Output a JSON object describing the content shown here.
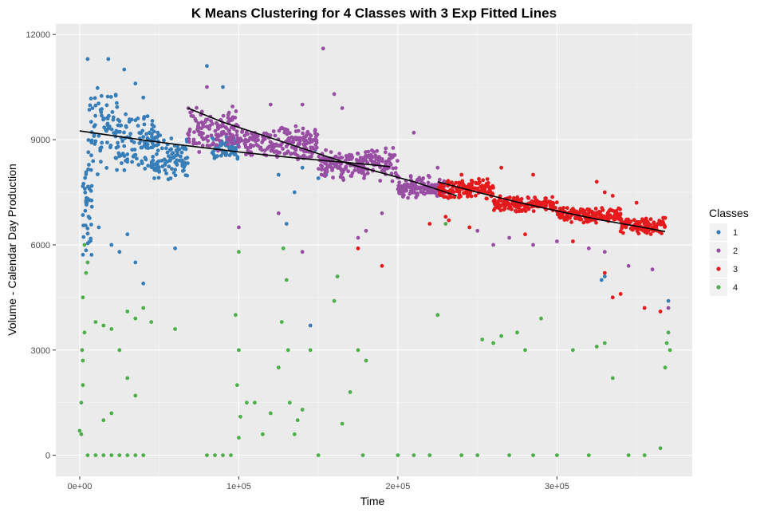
{
  "chart_data": {
    "type": "scatter",
    "title": "K Means Clustering for 4 Classes with 3 Exp Fitted Lines",
    "xlabel": "Time",
    "ylabel": "Volume - Calendar Day Production",
    "xlim": [
      -15000,
      385000
    ],
    "ylim": [
      -600,
      12300
    ],
    "x_ticks": [
      0,
      100000,
      200000,
      300000
    ],
    "x_tick_labels": [
      "0e+00",
      "1e+05",
      "2e+05",
      "3e+05"
    ],
    "y_ticks": [
      0,
      3000,
      6000,
      9000,
      12000
    ],
    "y_tick_labels": [
      "0",
      "3000",
      "6000",
      "9000",
      "12000"
    ],
    "legend": {
      "title": "Classes",
      "position": "right",
      "entries": [
        {
          "label": "1",
          "color": "#377EB8"
        },
        {
          "label": "2",
          "color": "#984EA3"
        },
        {
          "label": "3",
          "color": "#E41A1C"
        },
        {
          "label": "4",
          "color": "#4DAF4A"
        }
      ]
    },
    "series": [
      {
        "name": "1",
        "color": "#377EB8",
        "description": "dense band",
        "bands": [
          {
            "x": [
              2000,
              8000
            ],
            "y": [
              5000,
              9000
            ]
          },
          {
            "x": [
              5000,
              25000
            ],
            "y": [
              8000,
              10500
            ]
          },
          {
            "x": [
              25000,
              50000
            ],
            "y": [
              8000,
              9800
            ]
          },
          {
            "x": [
              45000,
              68000
            ],
            "y": [
              7800,
              9200
            ]
          },
          {
            "x": [
              83000,
              100000
            ],
            "y": [
              8400,
              9100
            ]
          }
        ],
        "points": [
          [
            5000,
            11300
          ],
          [
            18000,
            11300
          ],
          [
            28000,
            11000
          ],
          [
            35000,
            10600
          ],
          [
            40000,
            10200
          ],
          [
            80000,
            11100
          ],
          [
            90000,
            10500
          ],
          [
            12000,
            6500
          ],
          [
            20000,
            6000
          ],
          [
            25000,
            5800
          ],
          [
            30000,
            6300
          ],
          [
            35000,
            5500
          ],
          [
            40000,
            4900
          ],
          [
            60000,
            5900
          ],
          [
            125000,
            8000
          ],
          [
            130000,
            6600
          ],
          [
            135000,
            7500
          ],
          [
            140000,
            8200
          ],
          [
            148000,
            8700
          ],
          [
            150000,
            7900
          ],
          [
            155000,
            8000
          ],
          [
            160000,
            8300
          ],
          [
            175000,
            8600
          ],
          [
            145000,
            3700
          ],
          [
            370000,
            4400
          ],
          [
            330000,
            5100
          ],
          [
            328000,
            5000
          ]
        ]
      },
      {
        "name": "2",
        "color": "#984EA3",
        "description": "dense band",
        "bands": [
          {
            "x": [
              68000,
              100000
            ],
            "y": [
              8600,
              10000
            ]
          },
          {
            "x": [
              100000,
              150000
            ],
            "y": [
              8400,
              9400
            ]
          },
          {
            "x": [
              150000,
              200000
            ],
            "y": [
              7800,
              8800
            ]
          },
          {
            "x": [
              200000,
              230000
            ],
            "y": [
              7300,
              8000
            ]
          }
        ],
        "points": [
          [
            80000,
            10500
          ],
          [
            120000,
            10000
          ],
          [
            140000,
            10000
          ],
          [
            153000,
            11600
          ],
          [
            160000,
            10300
          ],
          [
            165000,
            9900
          ],
          [
            210000,
            9200
          ],
          [
            225000,
            8200
          ],
          [
            215000,
            7800
          ],
          [
            100000,
            6500
          ],
          [
            125000,
            6900
          ],
          [
            140000,
            5800
          ],
          [
            175000,
            6200
          ],
          [
            180000,
            6400
          ],
          [
            190000,
            6900
          ],
          [
            250000,
            6400
          ],
          [
            260000,
            6000
          ],
          [
            270000,
            6200
          ],
          [
            285000,
            6000
          ],
          [
            300000,
            6100
          ],
          [
            320000,
            5900
          ],
          [
            330000,
            5800
          ],
          [
            345000,
            5400
          ],
          [
            360000,
            5300
          ],
          [
            370000,
            4200
          ]
        ]
      },
      {
        "name": "3",
        "color": "#E41A1C",
        "description": "dense band",
        "bands": [
          {
            "x": [
              225000,
              260000
            ],
            "y": [
              7300,
              7900
            ]
          },
          {
            "x": [
              260000,
              300000
            ],
            "y": [
              6900,
              7400
            ]
          },
          {
            "x": [
              300000,
              340000
            ],
            "y": [
              6600,
              7100
            ]
          },
          {
            "x": [
              340000,
              368000
            ],
            "y": [
              6300,
              6800
            ]
          }
        ],
        "points": [
          [
            240000,
            8000
          ],
          [
            265000,
            8200
          ],
          [
            285000,
            8000
          ],
          [
            325000,
            7800
          ],
          [
            330000,
            7500
          ],
          [
            335000,
            7400
          ],
          [
            350000,
            7200
          ],
          [
            230000,
            6800
          ],
          [
            245000,
            6500
          ],
          [
            280000,
            6300
          ],
          [
            310000,
            6100
          ],
          [
            330000,
            5200
          ],
          [
            335000,
            4500
          ],
          [
            340000,
            4600
          ],
          [
            355000,
            4200
          ],
          [
            365000,
            4100
          ],
          [
            175000,
            5900
          ],
          [
            190000,
            5400
          ],
          [
            220000,
            6600
          ],
          [
            232000,
            6700
          ]
        ]
      },
      {
        "name": "4",
        "color": "#4DAF4A",
        "description": "scattered",
        "points": [
          [
            0,
            700
          ],
          [
            1000,
            1500
          ],
          [
            2000,
            2000
          ],
          [
            1500,
            3000
          ],
          [
            3000,
            3500
          ],
          [
            2000,
            4500
          ],
          [
            4000,
            5200
          ],
          [
            3000,
            6000
          ],
          [
            5000,
            5500
          ],
          [
            2000,
            2700
          ],
          [
            1000,
            600
          ],
          [
            5000,
            0
          ],
          [
            10000,
            0
          ],
          [
            15000,
            0
          ],
          [
            20000,
            0
          ],
          [
            25000,
            0
          ],
          [
            30000,
            0
          ],
          [
            35000,
            0
          ],
          [
            40000,
            0
          ],
          [
            10000,
            3800
          ],
          [
            15000,
            3700
          ],
          [
            20000,
            3600
          ],
          [
            25000,
            3000
          ],
          [
            30000,
            4100
          ],
          [
            35000,
            3900
          ],
          [
            40000,
            4200
          ],
          [
            45000,
            3800
          ],
          [
            30000,
            2200
          ],
          [
            35000,
            1700
          ],
          [
            15000,
            1000
          ],
          [
            20000,
            1200
          ],
          [
            60000,
            3600
          ],
          [
            80000,
            0
          ],
          [
            85000,
            0
          ],
          [
            90000,
            0
          ],
          [
            95000,
            0
          ],
          [
            98000,
            4000
          ],
          [
            100000,
            5800
          ],
          [
            100000,
            3000
          ],
          [
            99000,
            2000
          ],
          [
            101000,
            1100
          ],
          [
            100000,
            500
          ],
          [
            105000,
            1500
          ],
          [
            110000,
            1500
          ],
          [
            115000,
            600
          ],
          [
            120000,
            1200
          ],
          [
            125000,
            2500
          ],
          [
            128000,
            5900
          ],
          [
            127000,
            3800
          ],
          [
            130000,
            5000
          ],
          [
            131000,
            3000
          ],
          [
            132000,
            1500
          ],
          [
            135000,
            600
          ],
          [
            137000,
            1000
          ],
          [
            140000,
            1300
          ],
          [
            145000,
            3000
          ],
          [
            150000,
            0
          ],
          [
            160000,
            4400
          ],
          [
            162000,
            5100
          ],
          [
            165000,
            900
          ],
          [
            170000,
            1800
          ],
          [
            175000,
            3000
          ],
          [
            180000,
            2700
          ],
          [
            178000,
            0
          ],
          [
            200000,
            0
          ],
          [
            210000,
            0
          ],
          [
            220000,
            0
          ],
          [
            225000,
            4000
          ],
          [
            230000,
            6600
          ],
          [
            240000,
            0
          ],
          [
            250000,
            0
          ],
          [
            253000,
            3300
          ],
          [
            260000,
            3200
          ],
          [
            265000,
            3400
          ],
          [
            270000,
            0
          ],
          [
            275000,
            3500
          ],
          [
            280000,
            3000
          ],
          [
            285000,
            0
          ],
          [
            290000,
            3900
          ],
          [
            300000,
            0
          ],
          [
            310000,
            3000
          ],
          [
            320000,
            0
          ],
          [
            325000,
            3100
          ],
          [
            330000,
            3200
          ],
          [
            335000,
            2200
          ],
          [
            345000,
            0
          ],
          [
            355000,
            0
          ],
          [
            365000,
            200
          ],
          [
            368000,
            2500
          ],
          [
            369000,
            3200
          ],
          [
            370000,
            3500
          ],
          [
            371000,
            3000
          ]
        ]
      }
    ],
    "fitted_lines": [
      {
        "name": "fit-1",
        "color": "#000000",
        "x": [
          0,
          20000,
          40000,
          60000,
          80000,
          100000,
          120000,
          140000,
          160000,
          180000,
          195000
        ],
        "y": [
          9250,
          9120,
          8990,
          8870,
          8760,
          8650,
          8550,
          8460,
          8380,
          8300,
          8230
        ]
      },
      {
        "name": "fit-2",
        "color": "#000000",
        "x": [
          68000,
          90000,
          110000,
          130000,
          150000,
          170000,
          190000,
          210000,
          237000
        ],
        "y": [
          9900,
          9500,
          9200,
          8900,
          8600,
          8300,
          8050,
          7800,
          7400
        ]
      },
      {
        "name": "fit-3",
        "color": "#000000",
        "x": [
          225000,
          250000,
          275000,
          300000,
          325000,
          350000,
          368000
        ],
        "y": [
          7800,
          7500,
          7220,
          6970,
          6730,
          6530,
          6380
        ]
      }
    ]
  }
}
